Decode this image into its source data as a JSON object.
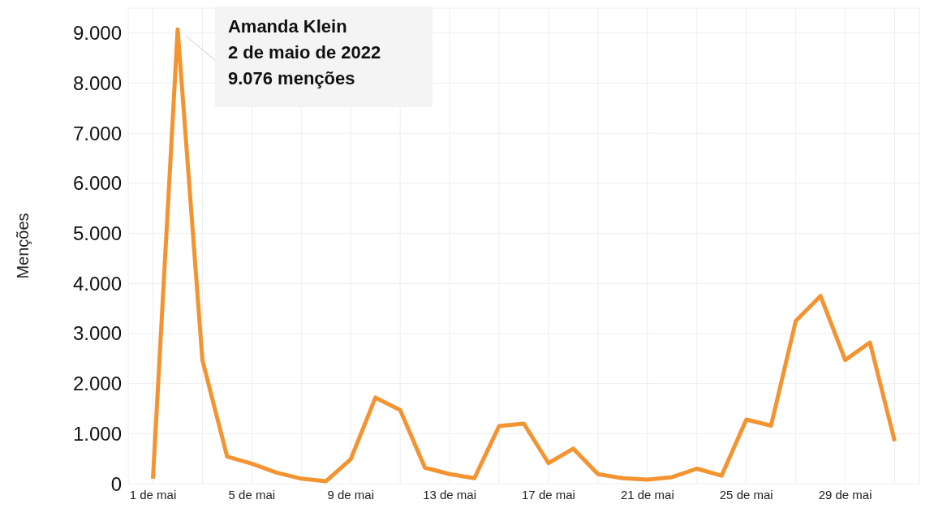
{
  "chart_data": {
    "type": "line",
    "ylabel": "Menções",
    "x": [
      "2022-05-01",
      "2022-05-02",
      "2022-05-03",
      "2022-05-04",
      "2022-05-05",
      "2022-05-06",
      "2022-05-07",
      "2022-05-08",
      "2022-05-09",
      "2022-05-10",
      "2022-05-11",
      "2022-05-12",
      "2022-05-13",
      "2022-05-14",
      "2022-05-15",
      "2022-05-16",
      "2022-05-17",
      "2022-05-18",
      "2022-05-19",
      "2022-05-20",
      "2022-05-21",
      "2022-05-22",
      "2022-05-23",
      "2022-05-24",
      "2022-05-25",
      "2022-05-26",
      "2022-05-27",
      "2022-05-28",
      "2022-05-29",
      "2022-05-30",
      "2022-05-31"
    ],
    "series": [
      {
        "color": "#f39431",
        "values": [
          100,
          9076,
          2470,
          540,
          400,
          220,
          100,
          50,
          490,
          1720,
          1470,
          320,
          190,
          110,
          1150,
          1200,
          410,
          700,
          190,
          110,
          80,
          130,
          300,
          160,
          1280,
          1160,
          3250,
          3750,
          2470,
          2820,
          850
        ]
      }
    ],
    "xlim": [
      "2022-04-30",
      "2022-06-01"
    ],
    "xticks": [
      {
        "value": "2022-05-01",
        "label": "1 de mai"
      },
      {
        "value": "2022-05-03",
        "label": null
      },
      {
        "value": "2022-05-05",
        "label": "5 de mai"
      },
      {
        "value": "2022-05-07",
        "label": null
      },
      {
        "value": "2022-05-09",
        "label": "9 de mai"
      },
      {
        "value": "2022-05-11",
        "label": null
      },
      {
        "value": "2022-05-13",
        "label": "13 de mai"
      },
      {
        "value": "2022-05-15",
        "label": null
      },
      {
        "value": "2022-05-17",
        "label": "17 de mai"
      },
      {
        "value": "2022-05-19",
        "label": null
      },
      {
        "value": "2022-05-21",
        "label": "21 de mai"
      },
      {
        "value": "2022-05-23",
        "label": null
      },
      {
        "value": "2022-05-25",
        "label": "25 de mai"
      },
      {
        "value": "2022-05-27",
        "label": null
      },
      {
        "value": "2022-05-29",
        "label": "29 de mai"
      },
      {
        "value": "2022-05-31",
        "label": null
      }
    ],
    "ylim": [
      0,
      9500
    ],
    "yticks": [
      0,
      {
        "value": 1000,
        "label": "1.000"
      },
      {
        "value": 2000,
        "label": "2.000"
      },
      {
        "value": 3000,
        "label": "3.000"
      },
      {
        "value": 4000,
        "label": "4.000"
      },
      {
        "value": 5000,
        "label": "5.000"
      },
      {
        "value": 6000,
        "label": "6.000"
      },
      {
        "value": 7000,
        "label": "7.000"
      },
      {
        "value": 8000,
        "label": "8.000"
      },
      {
        "value": 9000,
        "label": "9.000"
      }
    ],
    "grid": true,
    "marker": "none",
    "line_style": "solid",
    "legend": false,
    "annotations": [
      {
        "text": "Amanda Klein\n2 de maio de 2022\n9.076 menções",
        "x": "2022-05-02",
        "y": 9076
      }
    ]
  }
}
